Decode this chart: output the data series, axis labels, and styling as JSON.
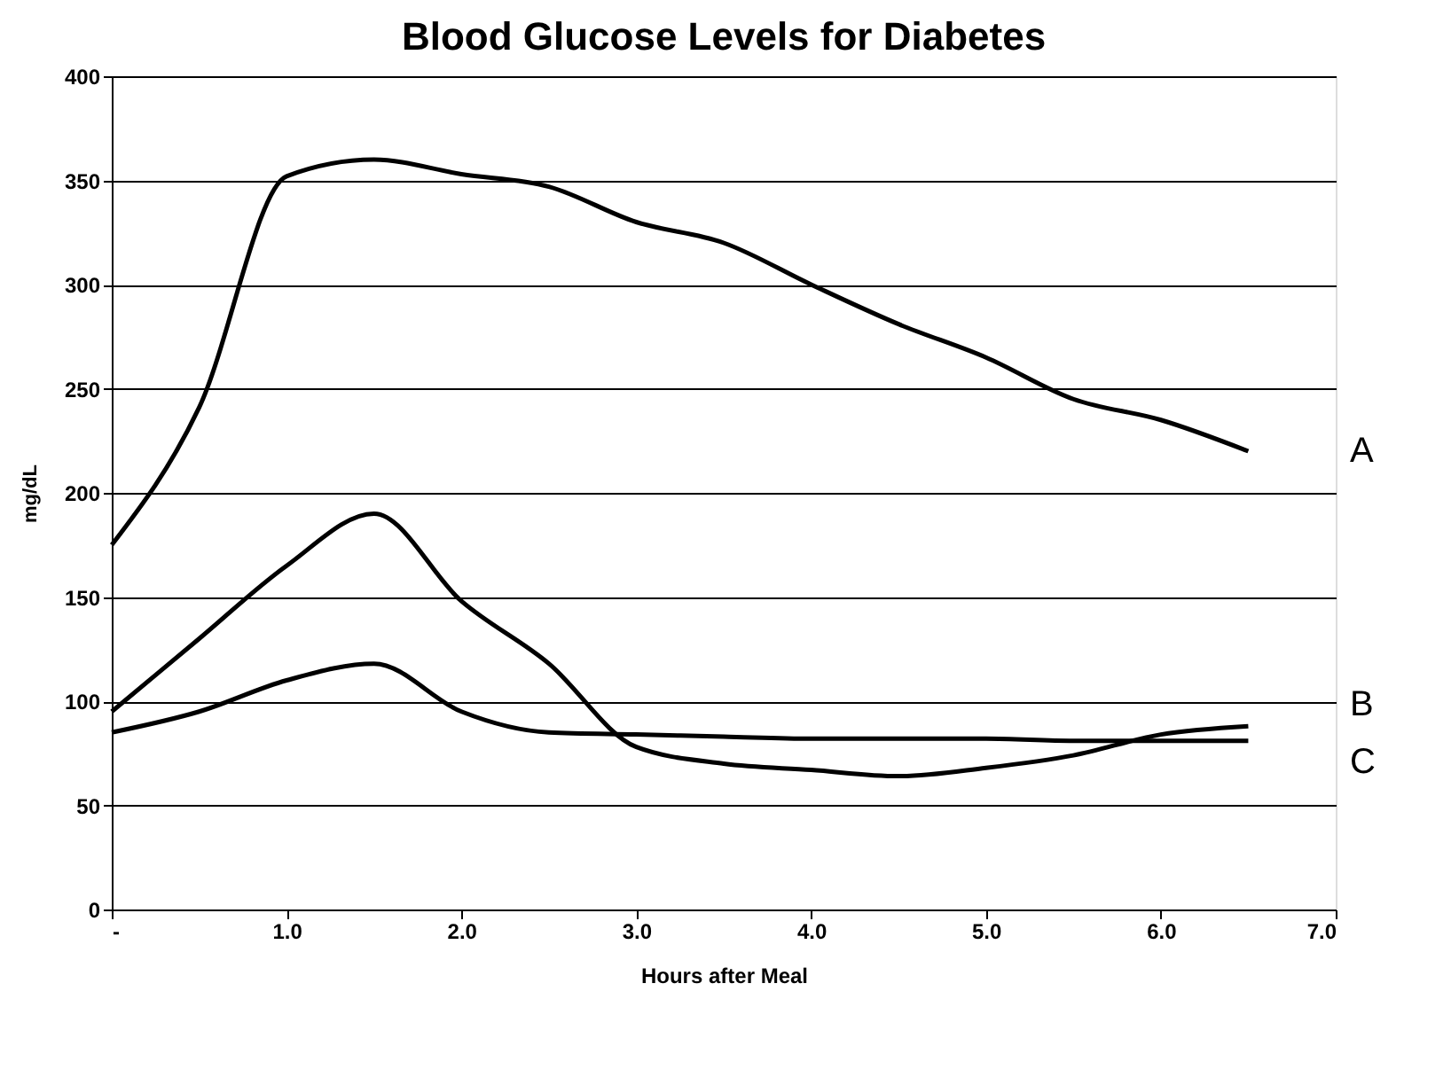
{
  "chart_data": {
    "type": "line",
    "title": "Blood Glucose Levels for Diabetes",
    "xlabel": "Hours after Meal",
    "ylabel": "mg/dL",
    "x": [
      0,
      0.5,
      1.0,
      1.5,
      2.0,
      2.5,
      3.0,
      3.5,
      4.0,
      4.5,
      5.0,
      5.5,
      6.0,
      6.5
    ],
    "series": [
      {
        "name": "A",
        "color": "#000000",
        "values": [
          175,
          241,
          352,
          360,
          353,
          347,
          330,
          320,
          300,
          281,
          265,
          245,
          235,
          220
        ]
      },
      {
        "name": "B",
        "color": "#000000",
        "values": [
          95,
          130,
          165,
          190,
          148,
          118,
          78,
          70,
          67,
          64,
          68,
          74,
          84,
          88
        ]
      },
      {
        "name": "C",
        "color": "#000000",
        "values": [
          85,
          95,
          110,
          118,
          95,
          85,
          84,
          83,
          82,
          82,
          82,
          81,
          81,
          81
        ]
      }
    ],
    "xlim": [
      0,
      7
    ],
    "xticks": [
      {
        "value": 0,
        "label": "-"
      },
      {
        "value": 1,
        "label": "1.0"
      },
      {
        "value": 2,
        "label": "2.0"
      },
      {
        "value": 3,
        "label": "3.0"
      },
      {
        "value": 4,
        "label": "4.0"
      },
      {
        "value": 5,
        "label": "5.0"
      },
      {
        "value": 6,
        "label": "6.0"
      },
      {
        "value": 7,
        "label": "7.0"
      }
    ],
    "ylim": [
      0,
      400
    ],
    "yticks": [
      0,
      50,
      100,
      150,
      200,
      250,
      300,
      350,
      400
    ],
    "grid": "y",
    "marker": "none",
    "line_style": "solid"
  }
}
